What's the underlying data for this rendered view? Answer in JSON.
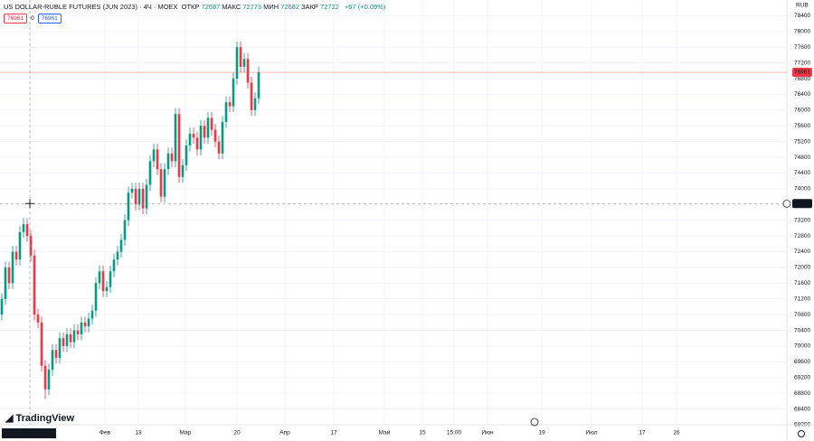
{
  "header": {
    "title": "US DOLLAR-RUBLE FUTURES (JUN 2023) · 4Ч · MOEX",
    "ohlc": [
      {
        "label": "ОТКР",
        "value": "72687"
      },
      {
        "label": "МАКС",
        "value": "72773"
      },
      {
        "label": "МИН",
        "value": "72682"
      },
      {
        "label": "ЗАКР",
        "value": "72722"
      }
    ],
    "change": "+67 (+0.09%)",
    "badges": [
      "76961",
      "0",
      "76961"
    ]
  },
  "logo": "TradingView",
  "chart_data": {
    "type": "candlestick",
    "currency": "RUB",
    "ylim": [
      68000,
      78800
    ],
    "yticks": [
      68000,
      68400,
      68800,
      69200,
      69600,
      70000,
      70400,
      70800,
      71200,
      71600,
      72000,
      72400,
      72800,
      73200,
      74000,
      74400,
      74800,
      75200,
      75600,
      76000,
      76400,
      76800,
      77200,
      77600,
      78000,
      78400
    ],
    "grid": true,
    "x_labels": [
      "Фев",
      "13",
      "Мар",
      "20",
      "Апр",
      "17",
      "Май",
      "15",
      "15:00",
      "Июн",
      "19",
      "Июл",
      "17",
      "26"
    ],
    "up_color": "#089981",
    "down_color": "#f23645",
    "last_price": 76961,
    "crosshair": {
      "price": 73623,
      "time": "пт 06 Янв '23 23:00"
    },
    "open": [
      70800,
      71200,
      72000,
      71600,
      72400,
      72200,
      72900,
      73100,
      72800,
      72300,
      70800,
      70600,
      69500,
      68900,
      69400,
      69900,
      69700,
      70200,
      70000,
      70300,
      70100,
      70400,
      70300,
      70600,
      70500,
      70700,
      70900,
      71600,
      71900,
      71400,
      71500,
      71900,
      72200,
      72400,
      72700,
      73200,
      73900,
      74000,
      73600,
      74000,
      73500,
      74100,
      74700,
      75000,
      74500,
      73800,
      74500,
      74900,
      74700,
      75900,
      74300,
      74600,
      75100,
      75400,
      75300,
      75000,
      75600,
      75300,
      75800,
      75500,
      75200,
      74900,
      75700,
      76200,
      76100,
      76800,
      77600,
      77100,
      77300,
      76700,
      76000,
      76300
    ],
    "high": [
      71350,
      72150,
      72150,
      72550,
      72550,
      73050,
      73250,
      73250,
      72950,
      72450,
      70950,
      70750,
      69650,
      69550,
      70050,
      70050,
      70350,
      70350,
      70450,
      70450,
      70550,
      70550,
      70750,
      70750,
      70850,
      71050,
      71750,
      72050,
      72050,
      71650,
      72050,
      72350,
      72550,
      72850,
      73350,
      74050,
      74150,
      74150,
      74150,
      74150,
      74250,
      74850,
      75150,
      75150,
      74650,
      74650,
      75050,
      75050,
      76050,
      76050,
      74750,
      75250,
      75550,
      75550,
      75450,
      75750,
      75750,
      75950,
      75950,
      75650,
      75350,
      75850,
      76350,
      76350,
      76950,
      77750,
      77750,
      77450,
      77450,
      76850,
      76450,
      77100
    ],
    "low": [
      70650,
      71050,
      71450,
      71450,
      72050,
      72050,
      72750,
      72650,
      72150,
      70650,
      70450,
      69350,
      68650,
      68750,
      69250,
      69550,
      69550,
      69850,
      69850,
      69950,
      69950,
      70150,
      70150,
      70350,
      70350,
      70550,
      70750,
      71450,
      71250,
      71250,
      71350,
      71750,
      72050,
      72250,
      72550,
      73050,
      73750,
      73450,
      73450,
      73350,
      73350,
      73950,
      74550,
      74350,
      73650,
      73650,
      74350,
      74550,
      74550,
      74150,
      74150,
      74450,
      74950,
      75150,
      74850,
      74850,
      75150,
      75150,
      75350,
      75050,
      74750,
      74750,
      75550,
      75950,
      75950,
      76650,
      76950,
      76950,
      76550,
      75850,
      75850,
      76150
    ],
    "close": [
      71200,
      72000,
      71600,
      72400,
      72200,
      72900,
      73100,
      72800,
      72300,
      70800,
      70600,
      69500,
      68900,
      69400,
      69900,
      69700,
      70200,
      70000,
      70300,
      70100,
      70400,
      70300,
      70600,
      70500,
      70700,
      70900,
      71600,
      71900,
      71400,
      71500,
      71900,
      72200,
      72400,
      72700,
      73200,
      73900,
      74000,
      73600,
      74000,
      73500,
      74100,
      74700,
      75000,
      74500,
      73800,
      74500,
      74900,
      74700,
      75900,
      74300,
      74600,
      75100,
      75400,
      75300,
      75000,
      75600,
      75300,
      75800,
      75500,
      75200,
      74900,
      75700,
      76200,
      76100,
      76800,
      77600,
      77100,
      77300,
      76700,
      76000,
      76300,
      76961
    ]
  }
}
